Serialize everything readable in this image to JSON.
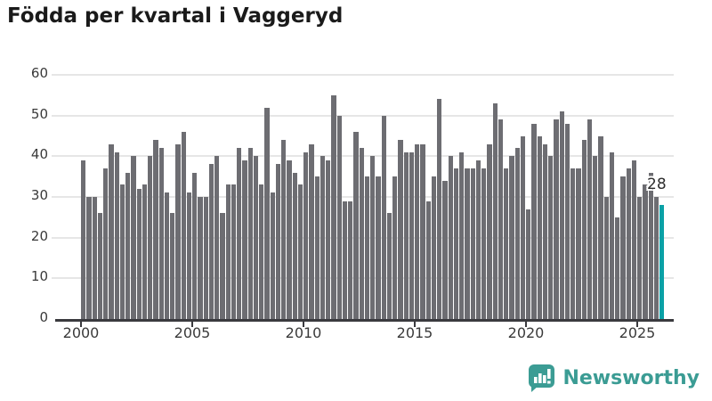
{
  "title": "Födda per kvartal i Vaggeryd",
  "chart_data": {
    "type": "bar",
    "title": "Födda per kvartal i Vaggeryd",
    "x_start_year": 2000,
    "frequency": "quarterly",
    "x_tick_labels": [
      "2000",
      "2005",
      "2010",
      "2015",
      "2020",
      "2025"
    ],
    "y_ticks": [
      0,
      10,
      20,
      30,
      40,
      50,
      60
    ],
    "ylim": [
      0,
      60
    ],
    "grid": "horizontal",
    "legend": "none",
    "values": [
      39,
      30,
      30,
      26,
      37,
      43,
      41,
      33,
      36,
      40,
      32,
      33,
      40,
      44,
      42,
      31,
      26,
      43,
      46,
      31,
      36,
      30,
      30,
      38,
      40,
      26,
      33,
      33,
      42,
      39,
      42,
      40,
      33,
      52,
      31,
      38,
      44,
      39,
      36,
      33,
      41,
      43,
      35,
      40,
      39,
      55,
      50,
      29,
      29,
      46,
      42,
      35,
      40,
      35,
      50,
      26,
      35,
      44,
      41,
      41,
      43,
      43,
      29,
      35,
      54,
      34,
      40,
      37,
      41,
      37,
      37,
      39,
      37,
      43,
      53,
      49,
      37,
      40,
      42,
      45,
      27,
      48,
      45,
      43,
      40,
      49,
      51,
      48,
      37,
      37,
      44,
      49,
      40,
      45,
      30,
      41,
      25,
      35,
      37,
      39,
      30,
      33,
      36,
      30,
      28
    ],
    "highlight": {
      "index": 104,
      "label": "28"
    },
    "colors": {
      "bar": "#6d6d72",
      "highlight_bar": "#0aa1a6",
      "gridline": "#e6e6e6",
      "axis": "#3a3a3e",
      "tick_label": "#3a3a3a"
    }
  },
  "annotation": {
    "value_label": "28"
  },
  "footer": {
    "brand": "Newsworthy",
    "brand_color": "#3b9c94"
  }
}
